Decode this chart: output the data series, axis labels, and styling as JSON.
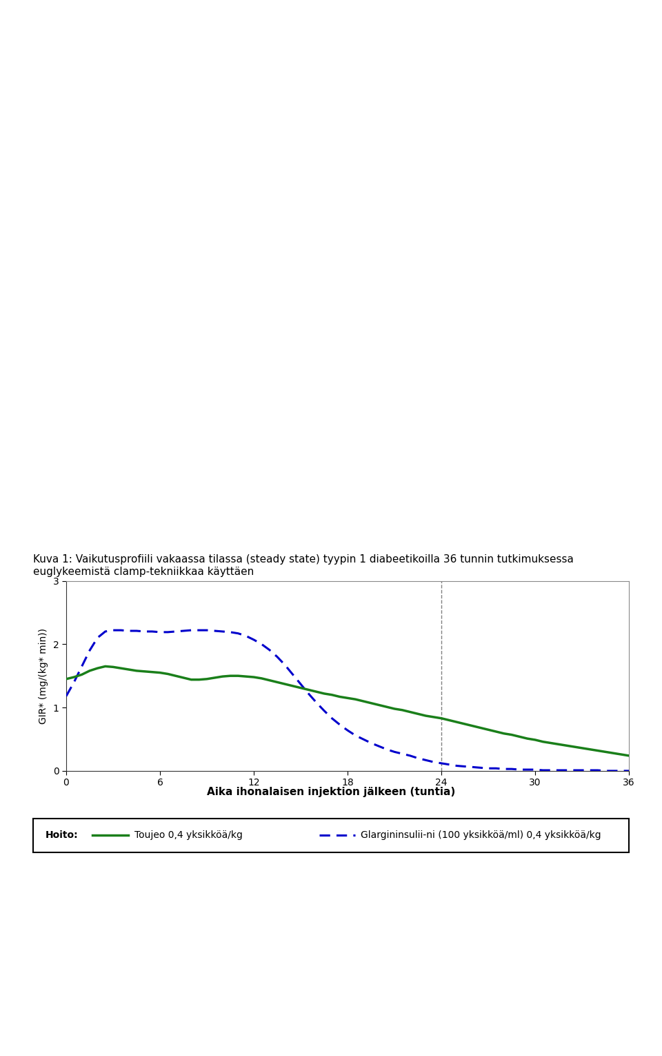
{
  "title": "Kuva 1: Vaikutusprofiili vakaassa tilassa (steady state) tyypin 1 diabeetikoilla 36 tunnin tutkimuksessa\neuglykeemistä clamp-tekniikkaa käyttäen",
  "xlabel": "Aika ihonalaisen injektion jälkeen (tuntia)",
  "ylabel": "GIR* (mg/(kg* min))",
  "xlim": [
    0,
    36
  ],
  "ylim": [
    0,
    3
  ],
  "xticks": [
    0,
    6,
    12,
    18,
    24,
    30,
    36
  ],
  "yticks": [
    0,
    1,
    2,
    3
  ],
  "vline_x": 24,
  "toujeo_color": "#1a7f1a",
  "glargine_color": "#0000cc",
  "legend_label_toujeo": "Toujeo 0,4 yksikköä/kg",
  "legend_label_glargine": "Glargininsulii­ni (100 yksikköä/ml) 0,4 yksikköä/kg",
  "legend_prefix": "Hoito:",
  "toujeo_x": [
    0,
    0.5,
    1,
    1.5,
    2,
    2.5,
    3,
    3.5,
    4,
    4.5,
    5,
    5.5,
    6,
    6.5,
    7,
    7.5,
    8,
    8.5,
    9,
    9.5,
    10,
    10.5,
    11,
    11.5,
    12,
    12.5,
    13,
    13.5,
    14,
    14.5,
    15,
    15.5,
    16,
    16.5,
    17,
    17.5,
    18,
    18.5,
    19,
    19.5,
    20,
    20.5,
    21,
    21.5,
    22,
    22.5,
    23,
    23.5,
    24,
    24.5,
    25,
    25.5,
    26,
    26.5,
    27,
    27.5,
    28,
    28.5,
    29,
    29.5,
    30,
    30.5,
    31,
    31.5,
    32,
    32.5,
    33,
    33.5,
    34,
    34.5,
    35,
    35.5,
    36
  ],
  "toujeo_y": [
    1.45,
    1.48,
    1.52,
    1.58,
    1.62,
    1.65,
    1.64,
    1.62,
    1.6,
    1.58,
    1.57,
    1.56,
    1.55,
    1.53,
    1.5,
    1.47,
    1.44,
    1.44,
    1.45,
    1.47,
    1.49,
    1.5,
    1.5,
    1.49,
    1.48,
    1.46,
    1.43,
    1.4,
    1.37,
    1.34,
    1.31,
    1.28,
    1.25,
    1.22,
    1.2,
    1.17,
    1.15,
    1.13,
    1.1,
    1.07,
    1.04,
    1.01,
    0.98,
    0.96,
    0.93,
    0.9,
    0.87,
    0.85,
    0.83,
    0.8,
    0.77,
    0.74,
    0.71,
    0.68,
    0.65,
    0.62,
    0.59,
    0.57,
    0.54,
    0.51,
    0.49,
    0.46,
    0.44,
    0.42,
    0.4,
    0.38,
    0.36,
    0.34,
    0.32,
    0.3,
    0.28,
    0.26,
    0.24
  ],
  "glargine_x": [
    0,
    0.5,
    1,
    1.5,
    2,
    2.5,
    3,
    3.5,
    4,
    4.5,
    5,
    5.5,
    6,
    6.5,
    7,
    7.5,
    8,
    8.5,
    9,
    9.5,
    10,
    10.5,
    11,
    11.5,
    12,
    12.5,
    13,
    13.5,
    14,
    14.5,
    15,
    15.5,
    16,
    16.5,
    17,
    17.5,
    18,
    18.5,
    19,
    19.5,
    20,
    20.5,
    21,
    21.5,
    22,
    22.5,
    23,
    23.5,
    24,
    24.5,
    25,
    25.5,
    26,
    26.5,
    27,
    27.5,
    28,
    28.5,
    29,
    29.5,
    30,
    30.5,
    31,
    31.5,
    32,
    32.5,
    33,
    33.5,
    34,
    34.5,
    35,
    35.5,
    36
  ],
  "glargine_y": [
    1.18,
    1.4,
    1.65,
    1.9,
    2.1,
    2.2,
    2.22,
    2.22,
    2.21,
    2.21,
    2.2,
    2.2,
    2.19,
    2.19,
    2.2,
    2.21,
    2.22,
    2.22,
    2.22,
    2.21,
    2.2,
    2.19,
    2.17,
    2.13,
    2.07,
    2.0,
    1.91,
    1.8,
    1.67,
    1.52,
    1.37,
    1.22,
    1.08,
    0.95,
    0.83,
    0.73,
    0.64,
    0.56,
    0.5,
    0.44,
    0.39,
    0.34,
    0.3,
    0.27,
    0.24,
    0.2,
    0.17,
    0.14,
    0.12,
    0.1,
    0.08,
    0.07,
    0.06,
    0.05,
    0.04,
    0.04,
    0.03,
    0.03,
    0.02,
    0.02,
    0.02,
    0.01,
    0.01,
    0.01,
    0.01,
    0.01,
    0.01,
    0.01,
    0.01,
    0.0,
    0.0,
    0.0,
    0.0
  ],
  "background_color": "#ffffff",
  "plot_bg_color": "#ffffff",
  "fig_width": 9.6,
  "fig_height": 15.3
}
